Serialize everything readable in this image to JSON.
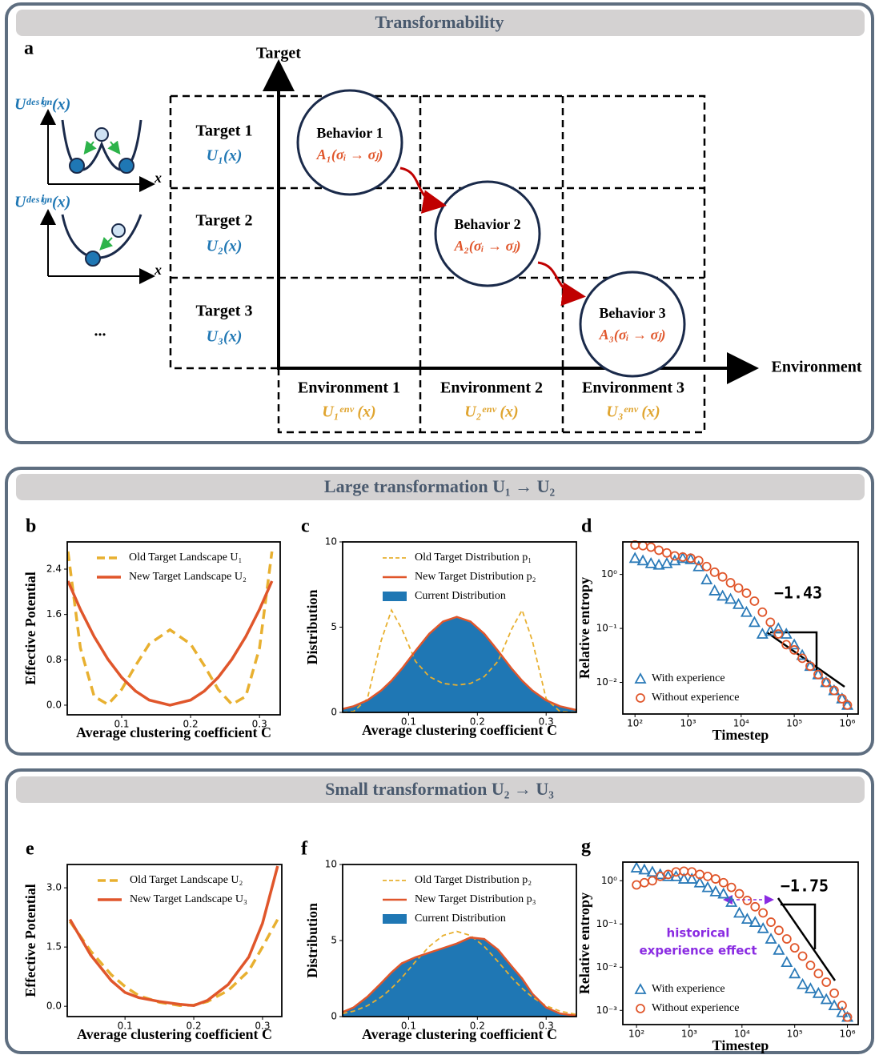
{
  "panels": [
    {
      "header": "Transformability"
    },
    {
      "header": "Large transformation U₁ → U₂"
    },
    {
      "header": "Small transformation U₂ → U₃"
    }
  ],
  "diagram": {
    "panel_label": "a",
    "axes": {
      "y": "Target",
      "x": "Environment"
    },
    "icons": [
      {
        "label": "Uᵈᵉˢⁱᵍⁿ(x)",
        "axis": "x"
      },
      {
        "label": "Uᵈᵉˢⁱᵍⁿ(x)",
        "axis": "x"
      }
    ],
    "rows": [
      {
        "label": "Target 1",
        "potential": "U₁(x)"
      },
      {
        "label": "Target 2",
        "potential": "U₂(x)"
      },
      {
        "label": "Target 3",
        "potential": "U₃(x)"
      }
    ],
    "ellipsis": "...",
    "columns": [
      {
        "label": "Environment 1",
        "potential": "U₁ᵉⁿᵛ (x)"
      },
      {
        "label": "Environment 2",
        "potential": "U₂ᵉⁿᵛ (x)"
      },
      {
        "label": "Environment 3",
        "potential": "U₃ᵉⁿᵛ (x)"
      }
    ],
    "behaviors": [
      {
        "label": "Behavior 1",
        "action": "A₁(σᵢ → σⱼ)"
      },
      {
        "label": "Behavior 2",
        "action": "A₂(σᵢ → σⱼ)"
      },
      {
        "label": "Behavior 3",
        "action": "A₃(σᵢ → σⱼ)"
      }
    ]
  },
  "chart_data": [
    {
      "type": "line",
      "panel_label": "b",
      "ylabel": "Effective Potential",
      "xlabel": "Average clustering coefficient C",
      "x": [
        0.022,
        0.04,
        0.06,
        0.08,
        0.1,
        0.12,
        0.14,
        0.17,
        0.2,
        0.22,
        0.24,
        0.26,
        0.28,
        0.3,
        0.318
      ],
      "xlim": [
        0.021,
        0.33
      ],
      "xticks": [
        0.1,
        0.2,
        0.3
      ],
      "ylim": [
        -0.17,
        2.88
      ],
      "yticks": [
        {
          "value": 0,
          "label": "0.0"
        },
        0.8,
        1.6,
        2.4
      ],
      "legend": "upper center",
      "series": [
        {
          "name": "Old Target Landscape U₁",
          "color": "#e8b030",
          "style": "dashed",
          "width": 3.5,
          "values": [
            2.71,
            1.01,
            0.155,
            0.014,
            0.278,
            0.695,
            1.078,
            1.33,
            1.078,
            0.695,
            0.278,
            0.014,
            0.155,
            1.01,
            2.71
          ]
        },
        {
          "name": "New Target Landscape U₂",
          "color": "#e0562b",
          "style": "solid",
          "width": 3.5,
          "values": [
            2.19,
            1.69,
            1.21,
            0.81,
            0.49,
            0.25,
            0.09,
            0,
            0.09,
            0.25,
            0.49,
            0.81,
            1.21,
            1.69,
            2.19
          ]
        }
      ]
    },
    {
      "type": "line",
      "panel_label": "c",
      "ylabel": "Distribution",
      "xlabel": "Average clustering coefficient C",
      "x": [
        0.004,
        0.02,
        0.04,
        0.06,
        0.075,
        0.09,
        0.11,
        0.13,
        0.15,
        0.17,
        0.19,
        0.21,
        0.23,
        0.25,
        0.265,
        0.28,
        0.3,
        0.32,
        0.344
      ],
      "xlim": [
        0.004,
        0.344
      ],
      "xticks": [
        0.1,
        0.2,
        0.3
      ],
      "ylim": [
        0,
        10
      ],
      "yticks": [
        0,
        5,
        10
      ],
      "legend": "upper center",
      "series": [
        {
          "name": "Old Target Distribution p₁",
          "color": "#e8b030",
          "style": "dashed",
          "width": 1.8,
          "values": [
            0,
            0.05,
            0.8,
            4.2,
            6.0,
            4.9,
            3.0,
            2.1,
            1.7,
            1.6,
            1.7,
            2.1,
            3.0,
            4.9,
            6.0,
            4.2,
            0.8,
            0.05,
            0
          ]
        },
        {
          "name": "New Target Distribution p₂",
          "color": "#e0562b",
          "style": "solid",
          "width": 2.5,
          "values": [
            0.2,
            0.36,
            0.71,
            1.28,
            1.86,
            2.56,
            3.61,
            4.61,
            5.33,
            5.6,
            5.33,
            4.61,
            3.61,
            2.56,
            1.86,
            1.28,
            0.71,
            0.36,
            0.14
          ]
        },
        {
          "name": "Current Distribution",
          "color": "#1f77b4",
          "style": "area",
          "values": [
            0.2,
            0.36,
            0.71,
            1.28,
            1.86,
            2.56,
            3.6,
            4.6,
            5.3,
            5.55,
            5.3,
            4.6,
            3.6,
            2.56,
            1.86,
            1.28,
            0.71,
            0.36,
            0.14
          ]
        }
      ]
    },
    {
      "type": "scatter",
      "panel_label": "d",
      "ylabel": "Relative entropy",
      "xlabel": "Timestep",
      "xscale": "log",
      "yscale": "log",
      "x": [
        100,
        141,
        200,
        282,
        398,
        562,
        794,
        1122,
        1585,
        2239,
        3162,
        4467,
        6310,
        8913,
        12589,
        17783,
        25119,
        35481,
        50119,
        70795,
        100000,
        141254,
        199526,
        281838,
        398107,
        562341,
        794328,
        1000000
      ],
      "xlim": [
        59,
        1600000
      ],
      "xticks": [
        {
          "value": 100,
          "label": "10²"
        },
        {
          "value": 1000,
          "label": "10³"
        },
        {
          "value": 10000,
          "label": "10⁴"
        },
        {
          "value": 100000,
          "label": "10⁵"
        },
        {
          "value": 1000000,
          "label": "10⁶"
        }
      ],
      "ylim": [
        0.0026,
        4
      ],
      "yticks": [
        {
          "value": 0.01,
          "label": "10⁻²"
        },
        {
          "value": 0.1,
          "label": "10⁻¹"
        },
        {
          "value": 1,
          "label": "10⁰"
        }
      ],
      "legend": "lower left",
      "annotations": [
        "−1.43"
      ],
      "series": [
        {
          "name": "With experience",
          "color": "#2a7ab8",
          "marker": "triangle",
          "values": [
            2.0,
            1.8,
            1.6,
            1.5,
            1.6,
            1.8,
            2.0,
            1.9,
            1.4,
            0.8,
            0.5,
            0.4,
            0.35,
            0.28,
            0.2,
            0.13,
            0.079,
            0.089,
            0.1,
            0.079,
            0.05,
            0.032,
            0.02,
            0.014,
            0.01,
            0.0071,
            0.005,
            0.0038
          ]
        },
        {
          "name": "Without experience",
          "color": "#e0562b",
          "marker": "circle",
          "values": [
            3.5,
            3.4,
            3.2,
            2.8,
            2.5,
            2.2,
            2.1,
            2.0,
            1.8,
            1.4,
            1.1,
            0.9,
            0.7,
            0.56,
            0.45,
            0.32,
            0.2,
            0.13,
            0.079,
            0.05,
            0.04,
            0.028,
            0.02,
            0.014,
            0.01,
            0.0071,
            0.005,
            0.0038
          ]
        }
      ]
    },
    {
      "type": "line",
      "panel_label": "e",
      "ylabel": "Effective Potential",
      "xlabel": "Average clustering coefficient C",
      "x": [
        0.02,
        0.05,
        0.08,
        0.1,
        0.12,
        0.15,
        0.18,
        0.2,
        0.22,
        0.25,
        0.28,
        0.3,
        0.322
      ],
      "xlim": [
        0.016,
        0.328
      ],
      "xticks": [
        0.1,
        0.2,
        0.3
      ],
      "ylim": [
        -0.26,
        3.59
      ],
      "yticks": [
        {
          "value": 0,
          "label": "0.0"
        },
        1.5,
        {
          "value": 3,
          "label": "3.0"
        }
      ],
      "legend": "upper center",
      "series": [
        {
          "name": "Old Target Landscape U₂",
          "color": "#e8b030",
          "style": "dashed",
          "width": 3.5,
          "values": [
            2.15,
            1.4,
            0.8,
            0.5,
            0.27,
            0.1,
            0.02,
            0.03,
            0.12,
            0.4,
            0.9,
            1.5,
            2.2
          ]
        },
        {
          "name": "New Target Landscape U₃",
          "color": "#e0562b",
          "style": "solid",
          "width": 3.5,
          "values": [
            2.2,
            1.3,
            0.65,
            0.35,
            0.22,
            0.12,
            0.05,
            0.02,
            0.15,
            0.55,
            1.25,
            2.1,
            3.55
          ]
        }
      ]
    },
    {
      "type": "line",
      "panel_label": "f",
      "ylabel": "Distribution",
      "xlabel": "Average clustering coefficient C",
      "x": [
        0.004,
        0.02,
        0.04,
        0.06,
        0.075,
        0.09,
        0.11,
        0.13,
        0.15,
        0.17,
        0.19,
        0.21,
        0.23,
        0.25,
        0.265,
        0.28,
        0.3,
        0.32,
        0.344
      ],
      "xlim": [
        0.004,
        0.344
      ],
      "xticks": [
        0.1,
        0.2,
        0.3
      ],
      "ylim": [
        0,
        10
      ],
      "yticks": [
        0,
        5,
        10
      ],
      "legend": "upper center",
      "series": [
        {
          "name": "Old Target Distribution p₂",
          "color": "#e8b030",
          "style": "dashed",
          "width": 1.8,
          "values": [
            0.2,
            0.36,
            0.71,
            1.28,
            1.86,
            2.56,
            3.61,
            4.61,
            5.33,
            5.6,
            5.33,
            4.61,
            3.61,
            2.56,
            1.86,
            1.28,
            0.71,
            0.36,
            0.14
          ]
        },
        {
          "name": "New Target Distribution p₃",
          "color": "#e0562b",
          "style": "solid",
          "width": 2.5,
          "values": [
            0.3,
            0.6,
            1.3,
            2.2,
            2.9,
            3.5,
            3.9,
            4.2,
            4.5,
            4.8,
            5.2,
            5.1,
            4.4,
            3.3,
            2.5,
            1.5,
            0.6,
            0.2,
            0.05
          ]
        },
        {
          "name": "Current Distribution",
          "color": "#1f77b4",
          "style": "area",
          "values": [
            0.3,
            0.6,
            1.3,
            2.2,
            2.9,
            3.5,
            3.9,
            4.2,
            4.5,
            4.8,
            5.2,
            5.1,
            4.4,
            3.3,
            2.5,
            1.5,
            0.6,
            0.2,
            0.05
          ]
        }
      ]
    },
    {
      "type": "scatter",
      "panel_label": "g",
      "ylabel": "Relative entropy",
      "xlabel": "Timestep",
      "xscale": "log",
      "yscale": "log",
      "x": [
        100,
        141,
        200,
        282,
        398,
        562,
        794,
        1122,
        1585,
        2239,
        3162,
        4467,
        6310,
        8913,
        12589,
        17783,
        25119,
        35481,
        50119,
        70795,
        100000,
        141254,
        199526,
        281838,
        398107,
        562341,
        794328,
        1000000
      ],
      "xlim": [
        55,
        1600000
      ],
      "xticks": [
        {
          "value": 100,
          "label": "10²"
        },
        {
          "value": 1000,
          "label": "10³"
        },
        {
          "value": 10000,
          "label": "10⁴"
        },
        {
          "value": 100000,
          "label": "10⁵"
        },
        {
          "value": 1000000,
          "label": "10⁶"
        }
      ],
      "ylim": [
        0.00047,
        2.7
      ],
      "yticks": [
        {
          "value": 0.001,
          "label": "10⁻³"
        },
        {
          "value": 0.01,
          "label": "10⁻²"
        },
        {
          "value": 0.1,
          "label": "10⁻¹"
        },
        {
          "value": 1,
          "label": "10⁰"
        }
      ],
      "legend": "lower left",
      "annotations": [
        "−1.75",
        "historical",
        "experience effect"
      ],
      "series": [
        {
          "name": "With experience",
          "color": "#2a7ab8",
          "marker": "triangle",
          "values": [
            2.0,
            1.8,
            1.6,
            1.4,
            1.26,
            1.26,
            1.1,
            1.1,
            0.9,
            0.7,
            0.56,
            0.5,
            0.32,
            0.18,
            0.13,
            0.11,
            0.079,
            0.045,
            0.025,
            0.013,
            0.0071,
            0.004,
            0.0032,
            0.0025,
            0.0018,
            0.0013,
            0.0009,
            0.0007
          ]
        },
        {
          "name": "Without experience",
          "color": "#e0562b",
          "marker": "circle",
          "values": [
            0.8,
            0.9,
            1.0,
            1.26,
            1.4,
            1.6,
            1.66,
            1.6,
            1.4,
            1.26,
            1.1,
            0.9,
            0.7,
            0.5,
            0.35,
            0.25,
            0.18,
            0.11,
            0.071,
            0.045,
            0.028,
            0.018,
            0.011,
            0.0071,
            0.0045,
            0.0025,
            0.0013,
            0.0007
          ]
        }
      ]
    }
  ]
}
